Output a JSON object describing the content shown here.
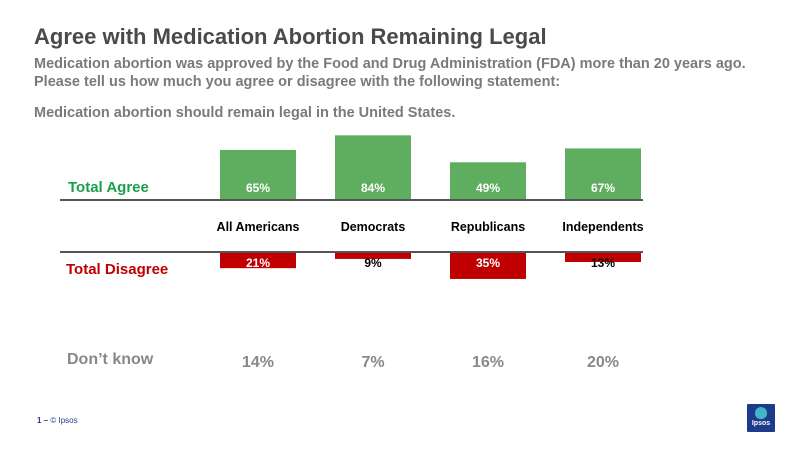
{
  "page": {
    "title": "Agree with Medication Abortion Remaining Legal",
    "subtitle": "Medication abortion was approved by the Food and Drug Administration (FDA) more than 20 years ago. Please tell us how much you agree or disagree with the following statement:",
    "statement": "Medication abortion should remain legal in the United States.",
    "footer_number": "1 –",
    "footer_copyright": "© Ipsos",
    "logo_text": "Ipsos"
  },
  "colors": {
    "agree": "#5fae5f",
    "agree_label": "#1aa04a",
    "disagree": "#c00000",
    "dont_know": "#888888",
    "axis": "#555555"
  },
  "chart_data": {
    "type": "bar",
    "title": "Agree with Medication Abortion Remaining Legal",
    "categories": [
      "All Americans",
      "Democrats",
      "Republicans",
      "Independents"
    ],
    "series": [
      {
        "name": "Total Agree",
        "values": [
          65,
          84,
          49,
          67
        ],
        "labels": [
          "65%",
          "84%",
          "49%",
          "67%"
        ]
      },
      {
        "name": "Total Disagree",
        "values": [
          21,
          9,
          35,
          13
        ],
        "labels": [
          "21%",
          "9%",
          "35%",
          "13%"
        ]
      },
      {
        "name": "Don’t know",
        "values": [
          14,
          7,
          16,
          20
        ],
        "labels": [
          "14%",
          "7%",
          "16%",
          "20%"
        ]
      }
    ],
    "ylim": [
      0,
      100
    ]
  }
}
